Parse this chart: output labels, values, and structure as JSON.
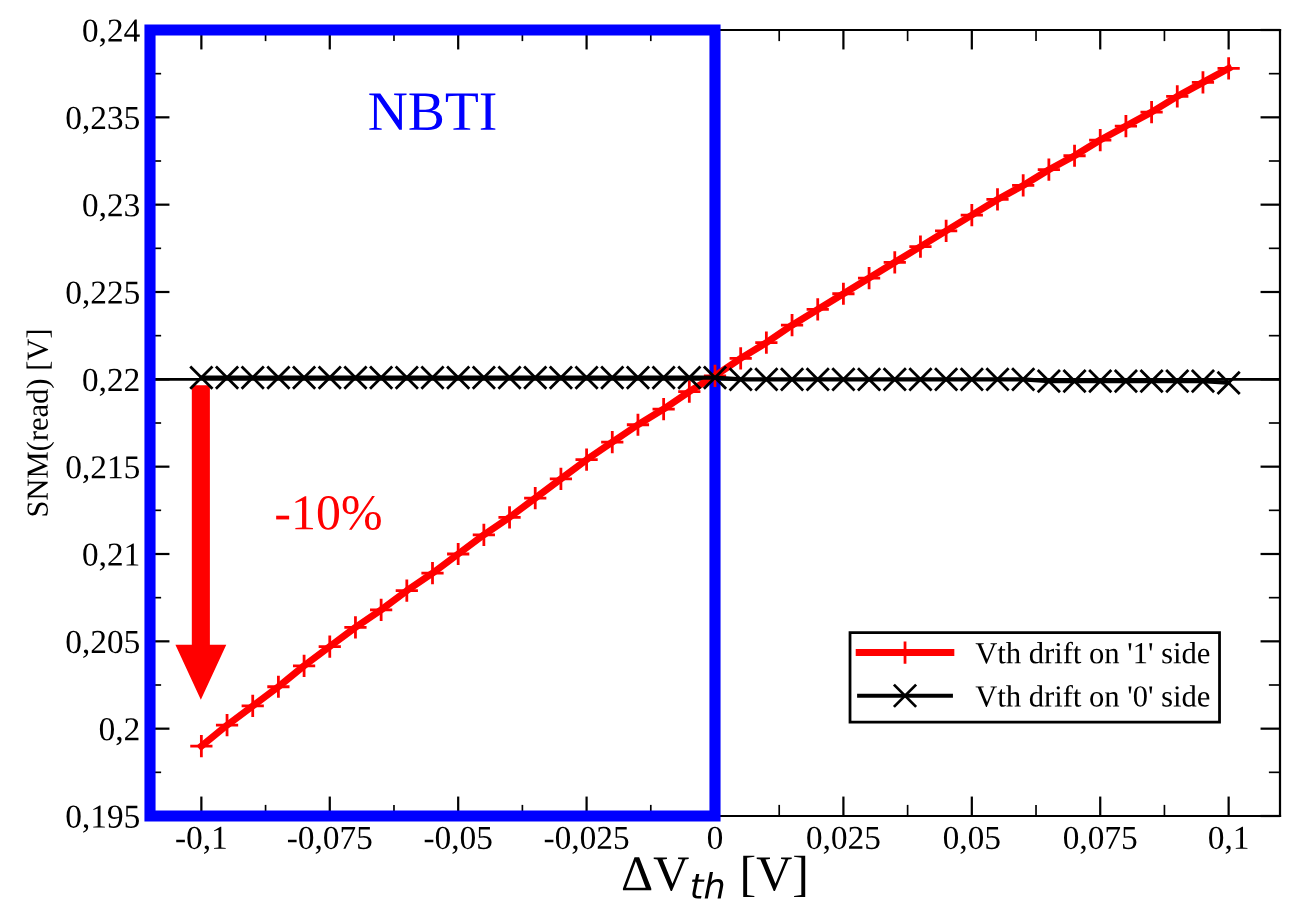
{
  "chart_data": {
    "type": "line",
    "xlabel": "ΔV$_{th}$ [V]",
    "ylabel": "SNM(read) [V]",
    "xlim": [
      -0.11,
      0.11
    ],
    "ylim": [
      0.195,
      0.24
    ],
    "xticks": [
      {
        "value": -0.1,
        "label": "-0,1"
      },
      {
        "value": -0.075,
        "label": "-0,075"
      },
      {
        "value": -0.05,
        "label": "-0,05"
      },
      {
        "value": -0.025,
        "label": "-0,025"
      },
      0,
      {
        "value": 0.025,
        "label": "0,025"
      },
      {
        "value": 0.05,
        "label": "0,05"
      },
      {
        "value": 0.075,
        "label": "0,075"
      },
      {
        "value": 0.1,
        "label": "0,1"
      }
    ],
    "yticks": [
      {
        "value": 0.195,
        "label": "0,195"
      },
      {
        "value": 0.2,
        "label": "0,2"
      },
      {
        "value": 0.205,
        "label": "0,205"
      },
      {
        "value": 0.21,
        "label": "0,21"
      },
      {
        "value": 0.215,
        "label": "0,215"
      },
      {
        "value": 0.22,
        "label": "0,22"
      },
      {
        "value": 0.225,
        "label": "0,225"
      },
      {
        "value": 0.23,
        "label": "0,23"
      },
      {
        "value": 0.235,
        "label": "0,235"
      },
      {
        "value": 0.24,
        "label": "0,24"
      }
    ],
    "x": [
      -0.1,
      -0.095,
      -0.09,
      -0.085,
      -0.08,
      -0.075,
      -0.07,
      -0.065,
      -0.06,
      -0.055,
      -0.05,
      -0.045,
      -0.04,
      -0.035,
      -0.03,
      -0.025,
      -0.02,
      -0.015,
      -0.01,
      -0.005,
      0,
      0.005,
      0.01,
      0.015,
      0.02,
      0.025,
      0.03,
      0.035,
      0.04,
      0.045,
      0.05,
      0.055,
      0.06,
      0.065,
      0.07,
      0.075,
      0.08,
      0.085,
      0.09,
      0.095,
      0.1
    ],
    "series": [
      {
        "name": "Vth drift on '1' side",
        "color": "#ff0000",
        "marker": "plus",
        "values": [
          0.199,
          0.2002,
          0.2013,
          0.2024,
          0.2036,
          0.2047,
          0.2058,
          0.2068,
          0.2079,
          0.2089,
          0.21,
          0.2111,
          0.2121,
          0.2132,
          0.2143,
          0.2154,
          0.2164,
          0.2174,
          0.2183,
          0.2193,
          0.2202,
          0.2212,
          0.2221,
          0.2231,
          0.224,
          0.2249,
          0.2258,
          0.2267,
          0.2276,
          0.2285,
          0.2294,
          0.2303,
          0.2311,
          0.232,
          0.2328,
          0.2337,
          0.2345,
          0.2353,
          0.2362,
          0.237,
          0.2378
        ]
      },
      {
        "name": "Vth drift on '0' side",
        "color": "#000000",
        "marker": "cross",
        "values": [
          0.2201,
          0.2201,
          0.2201,
          0.2201,
          0.2201,
          0.2201,
          0.2201,
          0.2201,
          0.2201,
          0.2201,
          0.2201,
          0.2201,
          0.2201,
          0.2201,
          0.2201,
          0.2201,
          0.2201,
          0.2201,
          0.2201,
          0.2201,
          0.2201,
          0.22,
          0.22,
          0.22,
          0.22,
          0.22,
          0.22,
          0.22,
          0.22,
          0.22,
          0.22,
          0.22,
          0.22,
          0.2199,
          0.2199,
          0.2199,
          0.2199,
          0.2199,
          0.2199,
          0.2199,
          0.2198
        ]
      }
    ],
    "ref_lines": [
      {
        "axis": "y",
        "value": 0.22,
        "color": "#000000"
      }
    ],
    "annotations": [
      "NBTI",
      "-10%"
    ],
    "legend": "bottom right",
    "grid": false
  }
}
